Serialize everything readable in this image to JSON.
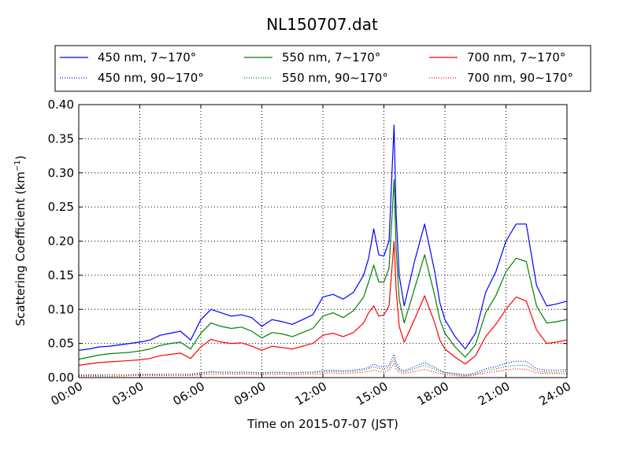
{
  "chart_data": {
    "type": "line",
    "title": "NL150707.dat",
    "xlabel": "Time on 2015-07-07 (JST)",
    "ylabel_parts": [
      "Scattering Coefficient (km",
      "−1",
      ")"
    ],
    "xlim": [
      "00:00",
      "24:00"
    ],
    "ylim": [
      0,
      0.4
    ],
    "x_ticks": [
      "00:00",
      "03:00",
      "06:00",
      "09:00",
      "12:00",
      "15:00",
      "18:00",
      "21:00",
      "24:00"
    ],
    "y_ticks": [
      "0.00",
      "0.05",
      "0.10",
      "0.15",
      "0.20",
      "0.25",
      "0.30",
      "0.35",
      "0.40"
    ],
    "grid": true,
    "legend_position": "top",
    "x_hours": [
      0,
      0.5,
      1,
      1.5,
      2,
      2.5,
      3,
      3.5,
      4,
      4.5,
      5,
      5.5,
      6,
      6.5,
      7,
      7.5,
      8,
      8.5,
      9,
      9.5,
      10,
      10.5,
      11,
      11.5,
      12,
      12.5,
      13,
      13.5,
      14,
      14.25,
      14.5,
      14.75,
      15,
      15.25,
      15.5,
      15.6,
      15.75,
      16,
      16.5,
      17,
      17.5,
      17.75,
      18,
      18.5,
      19,
      19.5,
      20,
      20.5,
      21,
      21.5,
      22,
      22.5,
      23,
      23.5,
      24
    ],
    "series": [
      {
        "name": "450 nm, 7∼170°",
        "color": "#0000ff",
        "style": "solid",
        "values": [
          0.04,
          0.042,
          0.045,
          0.046,
          0.048,
          0.05,
          0.052,
          0.055,
          0.062,
          0.065,
          0.068,
          0.055,
          0.085,
          0.1,
          0.095,
          0.09,
          0.092,
          0.088,
          0.075,
          0.085,
          0.082,
          0.078,
          0.085,
          0.092,
          0.118,
          0.122,
          0.115,
          0.125,
          0.15,
          0.175,
          0.218,
          0.18,
          0.178,
          0.2,
          0.37,
          0.24,
          0.15,
          0.105,
          0.17,
          0.225,
          0.155,
          0.11,
          0.085,
          0.06,
          0.042,
          0.065,
          0.125,
          0.155,
          0.2,
          0.225,
          0.225,
          0.135,
          0.105,
          0.108,
          0.112
        ]
      },
      {
        "name": "550 nm, 7∼170°",
        "color": "#008000",
        "style": "solid",
        "values": [
          0.027,
          0.03,
          0.033,
          0.035,
          0.036,
          0.037,
          0.039,
          0.042,
          0.047,
          0.05,
          0.052,
          0.042,
          0.065,
          0.08,
          0.075,
          0.072,
          0.074,
          0.068,
          0.058,
          0.066,
          0.064,
          0.06,
          0.066,
          0.072,
          0.09,
          0.095,
          0.088,
          0.098,
          0.118,
          0.14,
          0.165,
          0.14,
          0.14,
          0.16,
          0.29,
          0.19,
          0.115,
          0.08,
          0.13,
          0.18,
          0.12,
          0.085,
          0.065,
          0.045,
          0.03,
          0.048,
          0.095,
          0.12,
          0.155,
          0.175,
          0.17,
          0.105,
          0.08,
          0.082,
          0.085
        ]
      },
      {
        "name": "700 nm, 7∼170°",
        "color": "#ff0000",
        "style": "solid",
        "values": [
          0.018,
          0.02,
          0.022,
          0.023,
          0.024,
          0.025,
          0.026,
          0.028,
          0.032,
          0.034,
          0.036,
          0.028,
          0.045,
          0.056,
          0.052,
          0.05,
          0.051,
          0.046,
          0.04,
          0.046,
          0.044,
          0.042,
          0.046,
          0.05,
          0.062,
          0.065,
          0.06,
          0.066,
          0.08,
          0.095,
          0.105,
          0.09,
          0.092,
          0.105,
          0.2,
          0.13,
          0.075,
          0.052,
          0.085,
          0.12,
          0.08,
          0.055,
          0.042,
          0.03,
          0.02,
          0.032,
          0.06,
          0.078,
          0.1,
          0.118,
          0.112,
          0.07,
          0.05,
          0.052,
          0.055
        ]
      },
      {
        "name": "450 nm, 90∼170°",
        "color": "#0000ff",
        "style": "dotted",
        "values": [
          0.004,
          0.004,
          0.004,
          0.004,
          0.004,
          0.004,
          0.005,
          0.005,
          0.005,
          0.005,
          0.005,
          0.005,
          0.007,
          0.009,
          0.008,
          0.008,
          0.008,
          0.008,
          0.007,
          0.008,
          0.008,
          0.007,
          0.008,
          0.008,
          0.01,
          0.011,
          0.01,
          0.011,
          0.013,
          0.015,
          0.02,
          0.016,
          0.016,
          0.018,
          0.034,
          0.022,
          0.013,
          0.01,
          0.016,
          0.022,
          0.015,
          0.011,
          0.008,
          0.006,
          0.004,
          0.007,
          0.013,
          0.016,
          0.021,
          0.024,
          0.024,
          0.013,
          0.011,
          0.011,
          0.012
        ]
      },
      {
        "name": "550 nm, 90∼170°",
        "color": "#008000",
        "style": "dotted",
        "values": [
          0.003,
          0.003,
          0.003,
          0.004,
          0.004,
          0.004,
          0.004,
          0.004,
          0.004,
          0.005,
          0.005,
          0.004,
          0.006,
          0.008,
          0.007,
          0.007,
          0.007,
          0.007,
          0.006,
          0.007,
          0.007,
          0.006,
          0.007,
          0.007,
          0.009,
          0.009,
          0.009,
          0.009,
          0.011,
          0.013,
          0.016,
          0.013,
          0.013,
          0.015,
          0.027,
          0.018,
          0.011,
          0.008,
          0.013,
          0.018,
          0.012,
          0.009,
          0.007,
          0.005,
          0.003,
          0.005,
          0.01,
          0.013,
          0.016,
          0.018,
          0.018,
          0.01,
          0.008,
          0.008,
          0.009
        ]
      },
      {
        "name": "700 nm, 90∼170°",
        "color": "#ff0000",
        "style": "dotted",
        "values": [
          0.002,
          0.002,
          0.002,
          0.002,
          0.002,
          0.003,
          0.003,
          0.003,
          0.003,
          0.003,
          0.003,
          0.003,
          0.004,
          0.005,
          0.005,
          0.005,
          0.005,
          0.005,
          0.004,
          0.005,
          0.005,
          0.004,
          0.005,
          0.005,
          0.006,
          0.007,
          0.006,
          0.007,
          0.008,
          0.009,
          0.011,
          0.009,
          0.009,
          0.011,
          0.02,
          0.013,
          0.008,
          0.006,
          0.009,
          0.012,
          0.008,
          0.006,
          0.005,
          0.003,
          0.002,
          0.004,
          0.007,
          0.009,
          0.011,
          0.013,
          0.012,
          0.007,
          0.006,
          0.006,
          0.006
        ]
      }
    ]
  }
}
